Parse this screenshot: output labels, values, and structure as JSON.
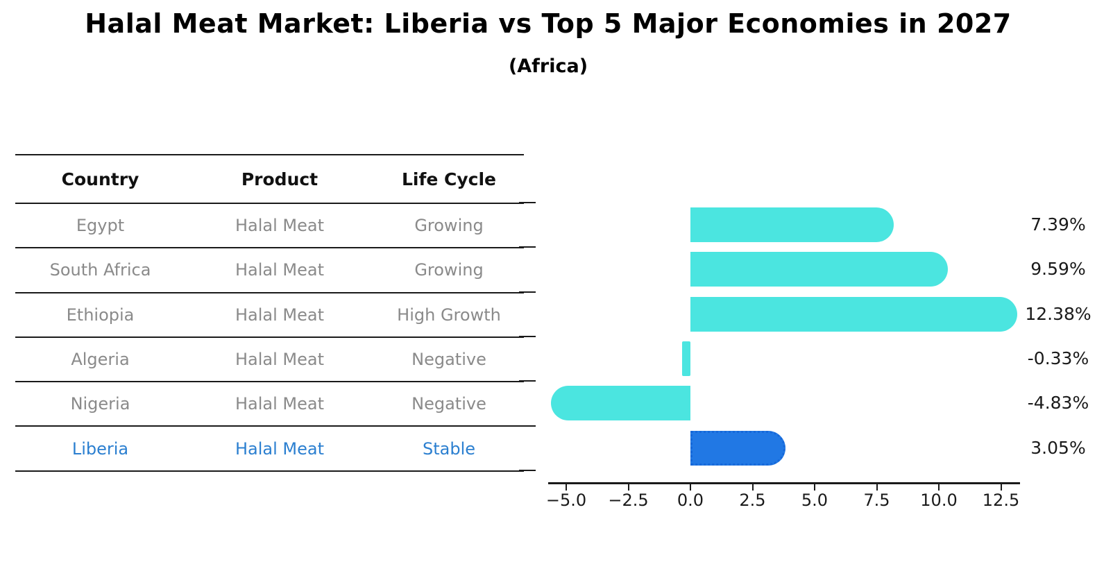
{
  "title": "Halal Meat Market: Liberia vs Top 5 Major Economies in 2027",
  "subtitle": "(Africa)",
  "table": {
    "headers": [
      "Country",
      "Product",
      "Life Cycle"
    ],
    "rows": [
      {
        "country": "Egypt",
        "product": "Halal Meat",
        "life_cycle": "Growing",
        "highlight": false
      },
      {
        "country": "South Africa",
        "product": "Halal Meat",
        "life_cycle": "Growing",
        "highlight": false
      },
      {
        "country": "Ethiopia",
        "product": "Halal Meat",
        "life_cycle": "High Growth",
        "highlight": false
      },
      {
        "country": "Algeria",
        "product": "Halal Meat",
        "life_cycle": "Negative",
        "highlight": false
      },
      {
        "country": "Nigeria",
        "product": "Halal Meat",
        "life_cycle": "Negative",
        "highlight": false
      },
      {
        "country": "Liberia",
        "product": "Halal Meat",
        "life_cycle": "Stable",
        "highlight": true
      }
    ]
  },
  "chart_data": {
    "type": "bar",
    "orientation": "horizontal",
    "title": "Halal Meat Market: Liberia vs Top 5 Major Economies in 2027",
    "subtitle": "(Africa)",
    "categories": [
      "Egypt",
      "South Africa",
      "Ethiopia",
      "Algeria",
      "Nigeria",
      "Liberia"
    ],
    "values": [
      7.39,
      9.59,
      12.38,
      -0.33,
      -4.83,
      3.05
    ],
    "value_labels": [
      "7.39%",
      "9.59%",
      "12.38%",
      "-0.33%",
      "-4.83%",
      "3.05%"
    ],
    "highlight_index": 5,
    "x_ticks": [
      -5.0,
      -2.5,
      0.0,
      2.5,
      5.0,
      7.5,
      10.0,
      12.5
    ],
    "x_tick_labels": [
      "−5.0",
      "−2.5",
      "0.0",
      "2.5",
      "5.0",
      "7.5",
      "10.0",
      "12.5"
    ],
    "xlim": [
      -5.7,
      13.3
    ],
    "grid": false,
    "legend": false,
    "colors": {
      "bar": "#4be5e0",
      "highlight_bar": "#2178e4",
      "highlight_bar_border": "#1668d9",
      "highlight_text": "#2b7fd0",
      "row_text": "#8a8a8a",
      "axis": "#1a1a1a"
    }
  }
}
